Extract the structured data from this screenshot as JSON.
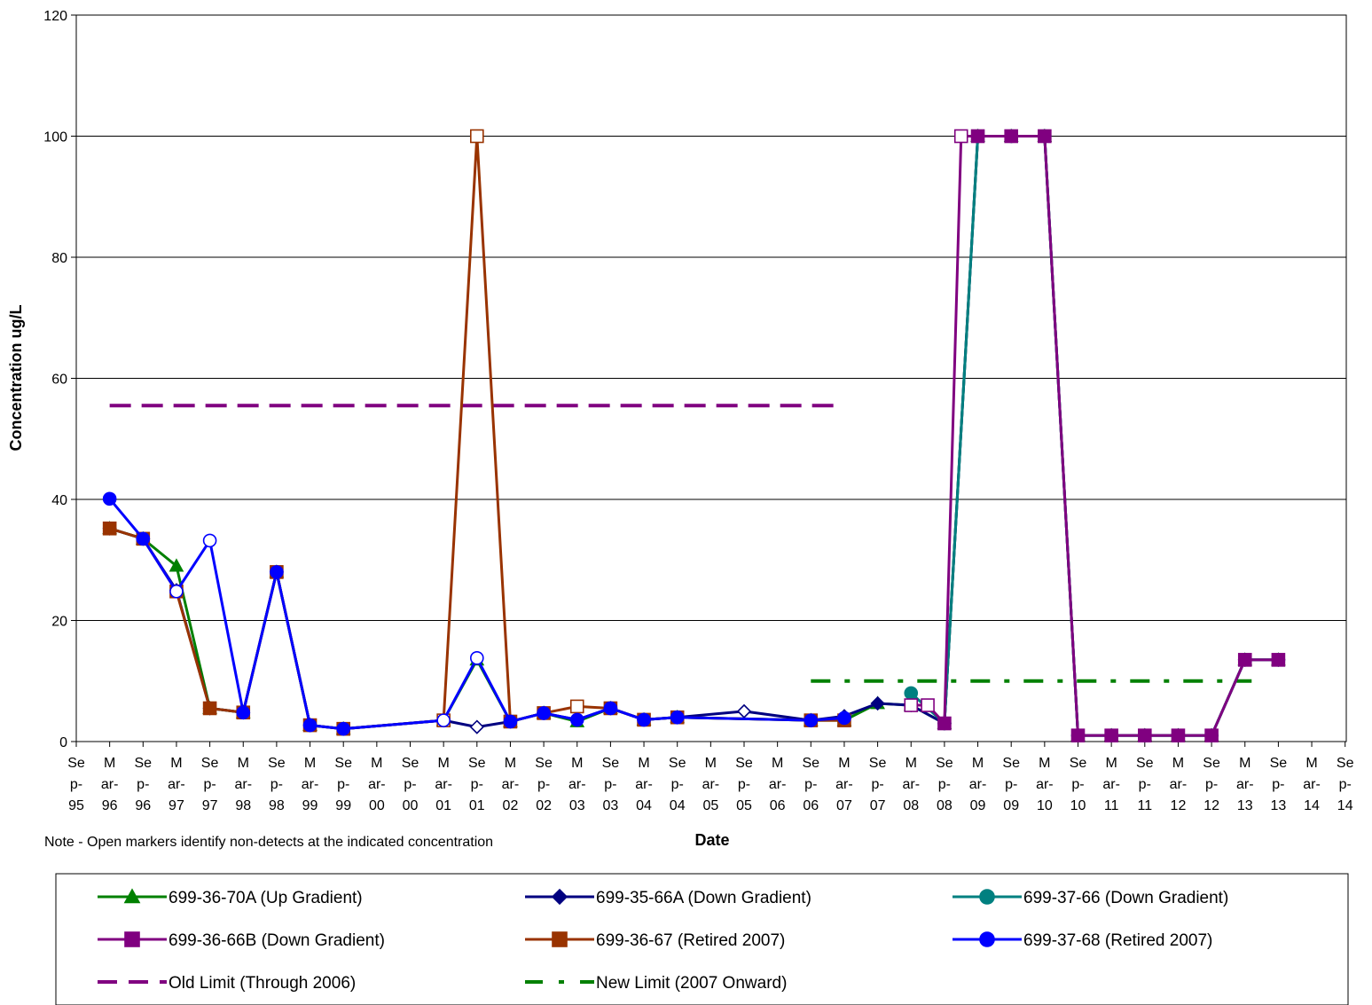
{
  "chart_data": {
    "type": "line",
    "title": "",
    "xlabel": "Date",
    "ylabel": "Concentration ug/L",
    "note": "Note - Open markers identify non-detects at the indicated concentration",
    "ylim": [
      0,
      120
    ],
    "yticks": [
      0,
      20,
      40,
      60,
      80,
      100,
      120
    ],
    "grid": "horizontal",
    "legend_position": "bottom",
    "x_ticks": [
      {
        "lines": [
          "Se",
          "p-",
          "95"
        ]
      },
      {
        "lines": [
          "M",
          "ar-",
          "96"
        ]
      },
      {
        "lines": [
          "Se",
          "p-",
          "96"
        ]
      },
      {
        "lines": [
          "M",
          "ar-",
          "97"
        ]
      },
      {
        "lines": [
          "Se",
          "p-",
          "97"
        ]
      },
      {
        "lines": [
          "M",
          "ar-",
          "98"
        ]
      },
      {
        "lines": [
          "Se",
          "p-",
          "98"
        ]
      },
      {
        "lines": [
          "M",
          "ar-",
          "99"
        ]
      },
      {
        "lines": [
          "Se",
          "p-",
          "99"
        ]
      },
      {
        "lines": [
          "M",
          "ar-",
          "00"
        ]
      },
      {
        "lines": [
          "Se",
          "p-",
          "00"
        ]
      },
      {
        "lines": [
          "M",
          "ar-",
          "01"
        ]
      },
      {
        "lines": [
          "Se",
          "p-",
          "01"
        ]
      },
      {
        "lines": [
          "M",
          "ar-",
          "02"
        ]
      },
      {
        "lines": [
          "Se",
          "p-",
          "02"
        ]
      },
      {
        "lines": [
          "M",
          "ar-",
          "03"
        ]
      },
      {
        "lines": [
          "Se",
          "p-",
          "03"
        ]
      },
      {
        "lines": [
          "M",
          "ar-",
          "04"
        ]
      },
      {
        "lines": [
          "Se",
          "p-",
          "04"
        ]
      },
      {
        "lines": [
          "M",
          "ar-",
          "05"
        ]
      },
      {
        "lines": [
          "Se",
          "p-",
          "05"
        ]
      },
      {
        "lines": [
          "M",
          "ar-",
          "06"
        ]
      },
      {
        "lines": [
          "Se",
          "p-",
          "06"
        ]
      },
      {
        "lines": [
          "M",
          "ar-",
          "07"
        ]
      },
      {
        "lines": [
          "Se",
          "p-",
          "07"
        ]
      },
      {
        "lines": [
          "M",
          "ar-",
          "08"
        ]
      },
      {
        "lines": [
          "Se",
          "p-",
          "08"
        ]
      },
      {
        "lines": [
          "M",
          "ar-",
          "09"
        ]
      },
      {
        "lines": [
          "Se",
          "p-",
          "09"
        ]
      },
      {
        "lines": [
          "M",
          "ar-",
          "10"
        ]
      },
      {
        "lines": [
          "Se",
          "p-",
          "10"
        ]
      },
      {
        "lines": [
          "M",
          "ar-",
          "11"
        ]
      },
      {
        "lines": [
          "Se",
          "p-",
          "11"
        ]
      },
      {
        "lines": [
          "M",
          "ar-",
          "12"
        ]
      },
      {
        "lines": [
          "Se",
          "p-",
          "12"
        ]
      },
      {
        "lines": [
          "M",
          "ar-",
          "13"
        ]
      },
      {
        "lines": [
          "Se",
          "p-",
          "13"
        ]
      },
      {
        "lines": [
          "M",
          "ar-",
          "14"
        ]
      },
      {
        "lines": [
          "Se",
          "p-",
          "14"
        ]
      }
    ],
    "series": [
      {
        "name": "699-36-70A  (Up Gradient)",
        "color": "#008000",
        "marker": "triangle",
        "width": 3,
        "points": [
          {
            "x": 1,
            "y": 35.2,
            "open": false
          },
          {
            "x": 2,
            "y": 33.5,
            "open": false
          },
          {
            "x": 3,
            "y": 29,
            "open": false
          },
          {
            "x": 4,
            "y": 5.5,
            "open": false
          },
          {
            "x": 5,
            "y": 4.8,
            "open": false
          },
          {
            "x": 6,
            "y": 28,
            "open": false
          },
          {
            "x": 7,
            "y": 2.7,
            "open": false
          },
          {
            "x": 8,
            "y": 2.1,
            "open": false
          },
          {
            "x": 11,
            "y": 3.5,
            "open": true
          },
          {
            "x": 12,
            "y": 13.5,
            "open": false
          },
          {
            "x": 13,
            "y": 3.3,
            "open": false
          },
          {
            "x": 14,
            "y": 4.7,
            "open": false
          },
          {
            "x": 15,
            "y": 3.3,
            "open": false
          },
          {
            "x": 16,
            "y": 5.5,
            "open": false
          },
          {
            "x": 17,
            "y": 3.6,
            "open": false
          },
          {
            "x": 18,
            "y": 4.0,
            "open": false
          },
          {
            "x": 22,
            "y": 3.5,
            "open": false
          },
          {
            "x": 23,
            "y": 3.5,
            "open": false
          },
          {
            "x": 24,
            "y": 6.3,
            "open": false
          },
          {
            "x": 25,
            "y": 6.0,
            "open": false
          },
          {
            "x": 26,
            "y": 3.0,
            "open": false
          },
          {
            "x": 27,
            "y": 100,
            "open": false
          },
          {
            "x": 28,
            "y": 100,
            "open": false
          },
          {
            "x": 29,
            "y": 100,
            "open": false
          },
          {
            "x": 30,
            "y": 1.0,
            "open": false
          },
          {
            "x": 31,
            "y": 1.0,
            "open": false
          },
          {
            "x": 32,
            "y": 1.0,
            "open": false
          },
          {
            "x": 33,
            "y": 1.0,
            "open": false
          },
          {
            "x": 34,
            "y": 1.0,
            "open": false
          },
          {
            "x": 35,
            "y": 13.5,
            "open": false
          },
          {
            "x": 36,
            "y": 13.5,
            "open": false
          }
        ]
      },
      {
        "name": "699-35-66A (Down Gradient)",
        "color": "#000080",
        "marker": "diamond",
        "width": 3,
        "points": [
          {
            "x": 1,
            "y": 35.2,
            "open": false
          },
          {
            "x": 2,
            "y": 33.5,
            "open": false
          },
          {
            "x": 3,
            "y": 25,
            "open": false
          },
          {
            "x": 4,
            "y": 5.5,
            "open": false
          },
          {
            "x": 5,
            "y": 4.8,
            "open": false
          },
          {
            "x": 6,
            "y": 28,
            "open": false
          },
          {
            "x": 7,
            "y": 2.7,
            "open": false
          },
          {
            "x": 8,
            "y": 2.1,
            "open": false
          },
          {
            "x": 11,
            "y": 3.5,
            "open": true
          },
          {
            "x": 12,
            "y": 2.4,
            "open": true
          },
          {
            "x": 13,
            "y": 3.3,
            "open": false
          },
          {
            "x": 14,
            "y": 4.7,
            "open": false
          },
          {
            "x": 15,
            "y": 3.6,
            "open": false
          },
          {
            "x": 16,
            "y": 5.5,
            "open": false
          },
          {
            "x": 17,
            "y": 3.6,
            "open": false
          },
          {
            "x": 18,
            "y": 4.0,
            "open": false
          },
          {
            "x": 20,
            "y": 5.0,
            "open": true
          },
          {
            "x": 22,
            "y": 3.5,
            "open": false
          },
          {
            "x": 23,
            "y": 4.2,
            "open": false
          },
          {
            "x": 24,
            "y": 6.3,
            "open": false
          },
          {
            "x": 25,
            "y": 6.0,
            "open": false
          },
          {
            "x": 26,
            "y": 3.0,
            "open": false
          },
          {
            "x": 27,
            "y": 100,
            "open": false
          },
          {
            "x": 28,
            "y": 100,
            "open": false
          },
          {
            "x": 29,
            "y": 100,
            "open": false
          },
          {
            "x": 30,
            "y": 1.0,
            "open": false
          },
          {
            "x": 31,
            "y": 1.0,
            "open": false
          },
          {
            "x": 32,
            "y": 1.0,
            "open": false
          },
          {
            "x": 33,
            "y": 1.0,
            "open": false
          },
          {
            "x": 34,
            "y": 1.0,
            "open": false
          },
          {
            "x": 35,
            "y": 13.5,
            "open": false
          },
          {
            "x": 36,
            "y": 13.5,
            "open": false
          }
        ]
      },
      {
        "name": "699-37-66  (Down Gradient)",
        "color": "#008080",
        "marker": "circle",
        "width": 3,
        "points": [
          {
            "x": 25,
            "y": 8.0,
            "open": false
          },
          {
            "x": 26,
            "y": 3.0,
            "open": false
          },
          {
            "x": 27,
            "y": 100,
            "open": false
          },
          {
            "x": 28,
            "y": 100,
            "open": false
          },
          {
            "x": 29,
            "y": 100,
            "open": false
          },
          {
            "x": 30,
            "y": 1.0,
            "open": false
          },
          {
            "x": 31,
            "y": 1.0,
            "open": false
          },
          {
            "x": 32,
            "y": 1.0,
            "open": false
          },
          {
            "x": 33,
            "y": 1.0,
            "open": false
          },
          {
            "x": 34,
            "y": 1.0,
            "open": false
          },
          {
            "x": 35,
            "y": 13.5,
            "open": false
          },
          {
            "x": 36,
            "y": 13.5,
            "open": false
          }
        ]
      },
      {
        "name": "699-36-66B  (Down Gradient)",
        "color": "#800080",
        "marker": "square",
        "width": 3,
        "points": [
          {
            "x": 25,
            "y": 6.0,
            "open": true
          },
          {
            "x": 25.5,
            "y": 6.0,
            "open": true
          },
          {
            "x": 26,
            "y": 3.0,
            "open": false
          },
          {
            "x": 26.5,
            "y": 100,
            "open": true
          },
          {
            "x": 27,
            "y": 100,
            "open": false
          },
          {
            "x": 28,
            "y": 100,
            "open": false
          },
          {
            "x": 29,
            "y": 100,
            "open": false
          },
          {
            "x": 30,
            "y": 1.0,
            "open": false
          },
          {
            "x": 31,
            "y": 1.0,
            "open": false
          },
          {
            "x": 32,
            "y": 1.0,
            "open": false
          },
          {
            "x": 33,
            "y": 1.0,
            "open": false
          },
          {
            "x": 34,
            "y": 1.0,
            "open": false
          },
          {
            "x": 35,
            "y": 13.5,
            "open": false
          },
          {
            "x": 36,
            "y": 13.5,
            "open": false
          }
        ]
      },
      {
        "name": "699-36-67  (Retired 2007)",
        "color": "#993300",
        "marker": "square",
        "width": 3,
        "points": [
          {
            "x": 1,
            "y": 35.2,
            "open": false
          },
          {
            "x": 2,
            "y": 33.5,
            "open": false
          },
          {
            "x": 3,
            "y": 24.8,
            "open": false
          },
          {
            "x": 4,
            "y": 5.5,
            "open": false
          },
          {
            "x": 5,
            "y": 4.8,
            "open": false
          },
          {
            "x": 6,
            "y": 28,
            "open": false
          },
          {
            "x": 7,
            "y": 2.7,
            "open": false
          },
          {
            "x": 8,
            "y": 2.1,
            "open": false
          },
          {
            "x": 11,
            "y": 3.5,
            "open": true
          },
          {
            "x": 12,
            "y": 100,
            "open": true
          },
          {
            "x": 13,
            "y": 3.3,
            "open": false
          },
          {
            "x": 14,
            "y": 4.7,
            "open": false
          },
          {
            "x": 15,
            "y": 5.8,
            "open": true
          },
          {
            "x": 16,
            "y": 5.5,
            "open": false
          },
          {
            "x": 17,
            "y": 3.6,
            "open": false
          },
          {
            "x": 18,
            "y": 4.0,
            "open": false
          },
          {
            "x": 22,
            "y": 3.5,
            "open": false
          },
          {
            "x": 23,
            "y": 3.5,
            "open": false
          }
        ]
      },
      {
        "name": "699-37-68  (Retired 2007)",
        "color": "#0000ff",
        "marker": "circle",
        "width": 3,
        "points": [
          {
            "x": 1,
            "y": 40.1,
            "open": false
          },
          {
            "x": 2,
            "y": 33.5,
            "open": false
          },
          {
            "x": 3,
            "y": 24.8,
            "open": true
          },
          {
            "x": 4,
            "y": 33.2,
            "open": true
          },
          {
            "x": 5,
            "y": 4.8,
            "open": false
          },
          {
            "x": 6,
            "y": 28,
            "open": false
          },
          {
            "x": 7,
            "y": 2.7,
            "open": false
          },
          {
            "x": 8,
            "y": 2.1,
            "open": false
          },
          {
            "x": 11,
            "y": 3.5,
            "open": true
          },
          {
            "x": 12,
            "y": 13.8,
            "open": true
          },
          {
            "x": 13,
            "y": 3.3,
            "open": false
          },
          {
            "x": 14,
            "y": 4.7,
            "open": false
          },
          {
            "x": 15,
            "y": 3.6,
            "open": false
          },
          {
            "x": 16,
            "y": 5.5,
            "open": false
          },
          {
            "x": 17,
            "y": 3.6,
            "open": false
          },
          {
            "x": 18,
            "y": 4.0,
            "open": false
          },
          {
            "x": 22,
            "y": 3.5,
            "open": false
          },
          {
            "x": 23,
            "y": 3.9,
            "open": false
          }
        ]
      }
    ],
    "limits": [
      {
        "name": "Old Limit (Through 2006)",
        "color": "#800080",
        "dash": "long",
        "y": 55.5,
        "x_start": 1,
        "x_end": 22.8
      },
      {
        "name": "New Limit (2007 Onward)",
        "color": "#008000",
        "dash": "dashdot",
        "y": 10,
        "x_start": 22,
        "x_end": 35.2
      }
    ]
  }
}
